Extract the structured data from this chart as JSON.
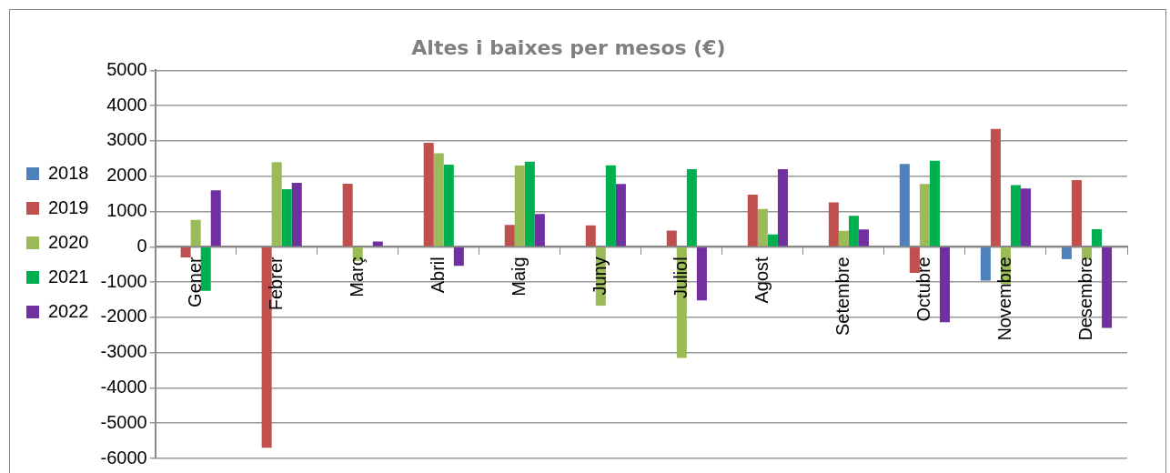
{
  "chart_data": {
    "type": "bar",
    "title": "Altes i baixes per mesos (€)",
    "categories": [
      "Gener",
      "Febrer",
      "Març",
      "Abril",
      "Maig",
      "Juny",
      "Juliol",
      "Agost",
      "Setembre",
      "Octubre",
      "Novembre",
      "Desembre"
    ],
    "series": [
      {
        "name": "2018",
        "color": "#4f81bd",
        "values": [
          null,
          null,
          null,
          null,
          null,
          null,
          null,
          null,
          null,
          2350,
          -960,
          -350
        ]
      },
      {
        "name": "2019",
        "color": "#c0504d",
        "values": [
          -300,
          -5700,
          1790,
          2950,
          620,
          610,
          460,
          1480,
          1260,
          -740,
          3340,
          1890
        ]
      },
      {
        "name": "2020",
        "color": "#9bbb59",
        "values": [
          760,
          2400,
          -400,
          2650,
          2300,
          -1670,
          -3150,
          1070,
          450,
          1780,
          -1060,
          -360
        ]
      },
      {
        "name": "2021",
        "color": "#00b050",
        "values": [
          -1250,
          1630,
          null,
          2330,
          2410,
          2310,
          2200,
          350,
          880,
          2440,
          1750,
          500
        ]
      },
      {
        "name": "2022",
        "color": "#7030a0",
        "values": [
          1600,
          1810,
          150,
          -540,
          930,
          1780,
          -1520,
          2200,
          490,
          -2140,
          1650,
          -2300
        ]
      }
    ],
    "ylim": [
      -6000,
      5000
    ],
    "yticks": [
      -6000,
      -5000,
      -4000,
      -3000,
      -2000,
      -1000,
      0,
      1000,
      2000,
      3000,
      4000,
      5000
    ],
    "grid": "y",
    "legend": "left"
  }
}
